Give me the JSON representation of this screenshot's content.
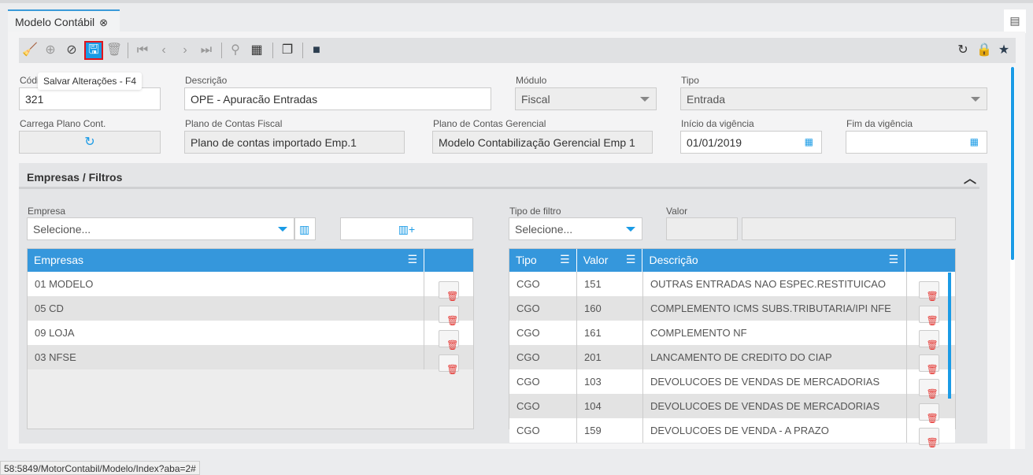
{
  "tab": {
    "title": "Modelo Contábil"
  },
  "tooltip": "Salvar Alterações - F4",
  "form": {
    "codigo": {
      "label": "Códi",
      "value": "321"
    },
    "descricao": {
      "label": "Descrição",
      "value": "OPE - Apuracão Entradas"
    },
    "modulo": {
      "label": "Módulo",
      "value": "Fiscal"
    },
    "tipo": {
      "label": "Tipo",
      "value": "Entrada"
    },
    "carrega": {
      "label": "Carrega Plano Cont."
    },
    "plano_fiscal": {
      "label": "Plano de Contas Fiscal",
      "value": "Plano de contas importado Emp.1"
    },
    "plano_gerencial": {
      "label": "Plano de Contas Gerencial",
      "value": "Modelo Contabilização Gerencial Emp 1"
    },
    "inicio": {
      "label": "Início da vigência",
      "value": "01/01/2019"
    },
    "fim": {
      "label": "Fim da vigência",
      "value": ""
    }
  },
  "section": {
    "title": "Empresas / Filtros",
    "empresa": {
      "label": "Empresa",
      "value": "Selecione..."
    },
    "tipo_filtro": {
      "label": "Tipo de filtro",
      "value": "Selecione..."
    },
    "valor": {
      "label": "Valor"
    },
    "empresas_grid": {
      "header": "Empresas",
      "rows": [
        "01 MODELO",
        "05 CD",
        "09 LOJA",
        "03 NFSE"
      ]
    },
    "filtros_grid": {
      "headers": [
        "Tipo",
        "Valor",
        "Descrição"
      ],
      "rows": [
        [
          "CGO",
          "151",
          "OUTRAS ENTRADAS NAO ESPEC.RESTITUICAO"
        ],
        [
          "CGO",
          "160",
          "COMPLEMENTO ICMS SUBS.TRIBUTARIA/IPI NFE"
        ],
        [
          "CGO",
          "161",
          "COMPLEMENTO NF"
        ],
        [
          "CGO",
          "201",
          "LANCAMENTO DE CREDITO DO CIAP"
        ],
        [
          "CGO",
          "103",
          "DEVOLUCOES DE VENDAS DE MERCADORIAS"
        ],
        [
          "CGO",
          "104",
          "DEVOLUCOES DE VENDAS DE MERCADORIAS"
        ],
        [
          "CGO",
          "159",
          "DEVOLUCOES DE VENDA - A PRAZO"
        ]
      ]
    }
  },
  "status_url": "58:5849/MotorContabil/Modelo/Index?aba=2#",
  "colors": {
    "accent": "#3597dc",
    "save_highlight": "#e2131b",
    "delete": "#e53935"
  }
}
